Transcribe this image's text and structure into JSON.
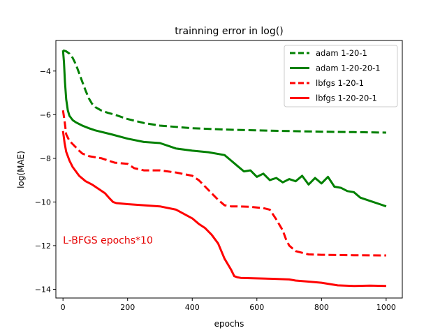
{
  "chart_data": {
    "type": "line",
    "title": "trainning error in log()",
    "xlabel": "epochs",
    "ylabel": "log(MAE)",
    "xlim": [
      -22,
      1050
    ],
    "ylim": [
      -14.4,
      -2.6
    ],
    "xticks": [
      0,
      200,
      400,
      600,
      800,
      1000
    ],
    "yticks": [
      -14,
      -12,
      -10,
      -8,
      -6,
      -4
    ],
    "grid": false,
    "legend_position": "top-right",
    "annotation": {
      "text": "L-BFGS epochs*10",
      "x": 0,
      "y": -11.9,
      "color": "#e60000"
    },
    "series": [
      {
        "name": "adam 1-20-1",
        "color": "#008000",
        "dash": "dashed",
        "x": [
          0,
          10,
          20,
          30,
          40,
          50,
          60,
          70,
          80,
          90,
          100,
          120,
          140,
          160,
          200,
          250,
          300,
          400,
          500,
          600,
          700,
          800,
          900,
          1000
        ],
        "y": [
          -3.05,
          -3.1,
          -3.2,
          -3.4,
          -3.7,
          -4.1,
          -4.5,
          -4.9,
          -5.25,
          -5.5,
          -5.65,
          -5.82,
          -5.92,
          -6.0,
          -6.2,
          -6.38,
          -6.5,
          -6.62,
          -6.68,
          -6.72,
          -6.75,
          -6.78,
          -6.8,
          -6.82
        ]
      },
      {
        "name": "adam 1-20-20-1",
        "color": "#008000",
        "dash": "solid",
        "x": [
          0,
          3,
          6,
          10,
          15,
          20,
          30,
          40,
          60,
          80,
          100,
          150,
          200,
          250,
          300,
          330,
          350,
          400,
          450,
          500,
          520,
          540,
          560,
          580,
          600,
          620,
          640,
          660,
          680,
          700,
          720,
          740,
          760,
          780,
          800,
          820,
          840,
          860,
          880,
          900,
          920,
          940,
          960,
          980,
          1000
        ],
        "y": [
          -3.05,
          -3.6,
          -4.5,
          -5.3,
          -5.8,
          -6.05,
          -6.25,
          -6.35,
          -6.5,
          -6.62,
          -6.72,
          -6.9,
          -7.1,
          -7.25,
          -7.3,
          -7.45,
          -7.55,
          -7.65,
          -7.72,
          -7.85,
          -8.1,
          -8.35,
          -8.6,
          -8.55,
          -8.85,
          -8.7,
          -9.0,
          -8.9,
          -9.1,
          -8.95,
          -9.05,
          -8.8,
          -9.2,
          -8.9,
          -9.15,
          -8.85,
          -9.3,
          -9.35,
          -9.5,
          -9.55,
          -9.8,
          -9.9,
          -10.0,
          -10.1,
          -10.2
        ]
      },
      {
        "name": "lbfgs 1-20-1",
        "color": "#ff0000",
        "dash": "dashed",
        "x": [
          0,
          5,
          10,
          20,
          30,
          40,
          50,
          60,
          80,
          100,
          120,
          140,
          160,
          200,
          220,
          250,
          300,
          350,
          400,
          420,
          440,
          460,
          480,
          500,
          520,
          540,
          580,
          620,
          640,
          660,
          680,
          690,
          700,
          720,
          760,
          800,
          850,
          900,
          1000
        ],
        "y": [
          -5.8,
          -6.3,
          -6.9,
          -7.2,
          -7.35,
          -7.5,
          -7.65,
          -7.78,
          -7.9,
          -7.95,
          -8.0,
          -8.1,
          -8.2,
          -8.25,
          -8.45,
          -8.55,
          -8.55,
          -8.65,
          -8.8,
          -9.0,
          -9.3,
          -9.6,
          -9.9,
          -10.15,
          -10.2,
          -10.2,
          -10.22,
          -10.28,
          -10.35,
          -10.8,
          -11.3,
          -11.7,
          -12.0,
          -12.25,
          -12.4,
          -12.42,
          -12.43,
          -12.44,
          -12.45
        ]
      },
      {
        "name": "lbfgs 1-20-20-1",
        "color": "#ff0000",
        "dash": "solid",
        "x": [
          0,
          5,
          10,
          20,
          30,
          50,
          70,
          90,
          110,
          130,
          145,
          155,
          165,
          200,
          250,
          300,
          350,
          400,
          420,
          440,
          460,
          480,
          500,
          520,
          530,
          540,
          550,
          600,
          650,
          700,
          720,
          760,
          800,
          850,
          900,
          950,
          1000
        ],
        "y": [
          -6.75,
          -7.3,
          -7.7,
          -8.1,
          -8.4,
          -8.8,
          -9.05,
          -9.2,
          -9.4,
          -9.6,
          -9.85,
          -10.0,
          -10.05,
          -10.1,
          -10.15,
          -10.2,
          -10.35,
          -10.75,
          -11.0,
          -11.2,
          -11.5,
          -11.9,
          -12.6,
          -13.1,
          -13.4,
          -13.45,
          -13.48,
          -13.5,
          -13.52,
          -13.55,
          -13.6,
          -13.65,
          -13.7,
          -13.82,
          -13.85,
          -13.83,
          -13.85
        ]
      }
    ]
  }
}
